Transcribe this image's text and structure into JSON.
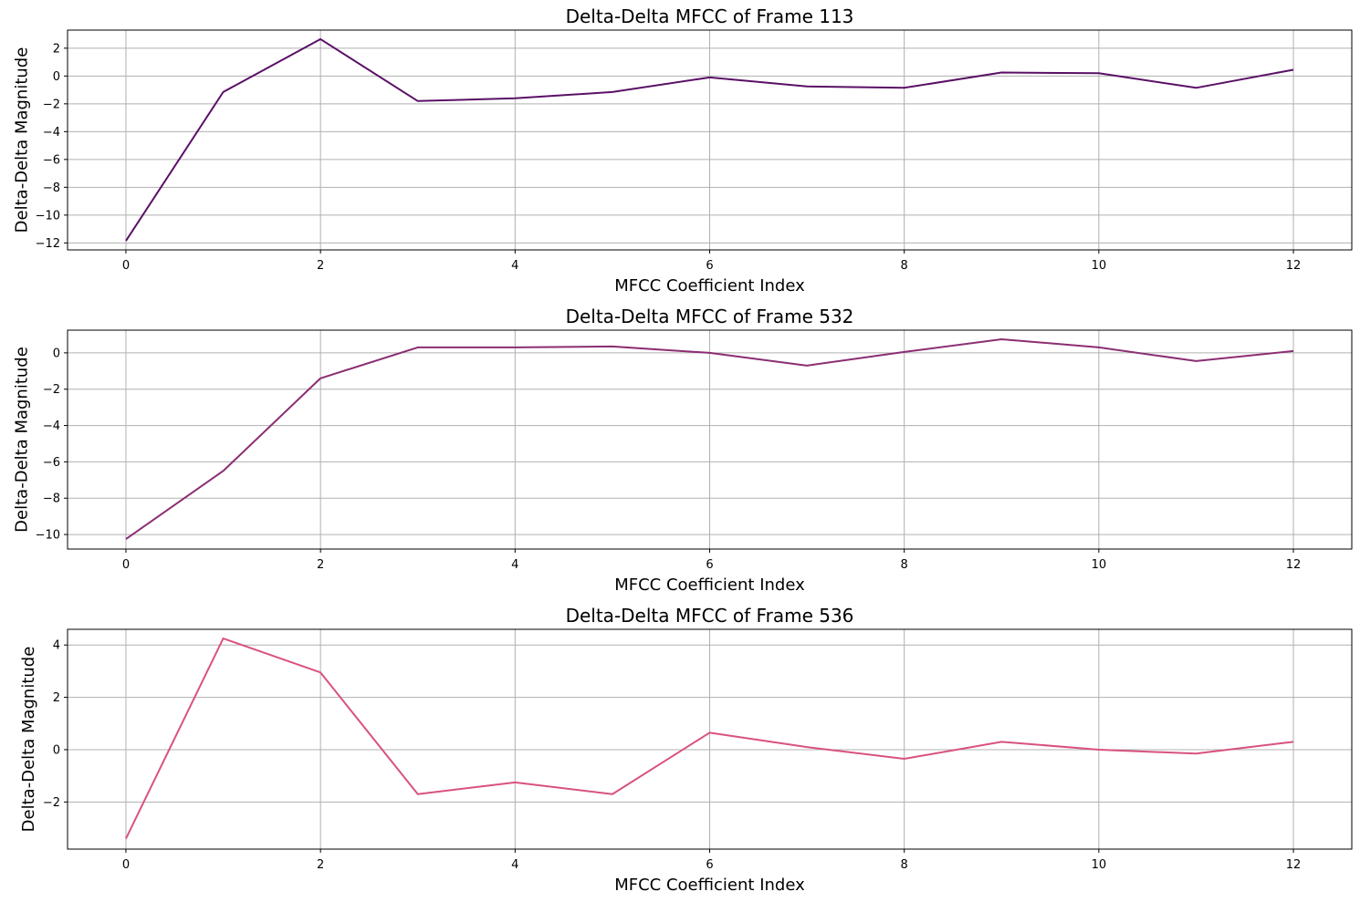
{
  "chart_data": [
    {
      "type": "line",
      "title": "Delta-Delta MFCC of Frame 113",
      "xlabel": "MFCC Coefficient Index",
      "ylabel": "Delta-Delta Magnitude",
      "x": [
        0,
        1,
        2,
        3,
        4,
        5,
        6,
        7,
        8,
        9,
        10,
        11,
        12
      ],
      "series": [
        {
          "color": "#5a1066",
          "values": [
            -11.85,
            -1.15,
            2.65,
            -1.8,
            -1.6,
            -1.15,
            -0.1,
            -0.75,
            -0.85,
            0.25,
            0.2,
            -0.85,
            0.45
          ]
        }
      ],
      "xlim": [
        -0.6,
        12.6
      ],
      "ylim": [
        -12.5,
        3.3
      ],
      "xticks": [
        0,
        2,
        4,
        6,
        8,
        10,
        12
      ],
      "yticks": [
        -12,
        -10,
        -8,
        -6,
        -4,
        -2,
        0,
        2
      ],
      "grid": true
    },
    {
      "type": "line",
      "title": "Delta-Delta MFCC of Frame 532",
      "xlabel": "MFCC Coefficient Index",
      "ylabel": "Delta-Delta Magnitude",
      "x": [
        0,
        1,
        2,
        3,
        4,
        5,
        6,
        7,
        8,
        9,
        10,
        11,
        12
      ],
      "series": [
        {
          "color": "#8b2e72",
          "values": [
            -10.25,
            -6.5,
            -1.4,
            0.3,
            0.3,
            0.35,
            0.0,
            -0.7,
            0.05,
            0.75,
            0.3,
            -0.45,
            0.1
          ]
        }
      ],
      "xlim": [
        -0.6,
        12.6
      ],
      "ylim": [
        -10.8,
        1.25
      ],
      "xticks": [
        0,
        2,
        4,
        6,
        8,
        10,
        12
      ],
      "yticks": [
        -10,
        -8,
        -6,
        -4,
        -2,
        0
      ],
      "grid": true
    },
    {
      "type": "line",
      "title": "Delta-Delta MFCC of Frame 536",
      "xlabel": "MFCC Coefficient Index",
      "ylabel": "Delta-Delta Magnitude",
      "x": [
        0,
        1,
        2,
        3,
        4,
        5,
        6,
        7,
        8,
        9,
        10,
        11,
        12
      ],
      "series": [
        {
          "color": "#d9527e",
          "values": [
            -3.4,
            4.25,
            2.95,
            -1.7,
            -1.25,
            -1.7,
            0.65,
            0.1,
            -0.35,
            0.3,
            0.0,
            -0.15,
            0.3
          ]
        }
      ],
      "xlim": [
        -0.6,
        12.6
      ],
      "ylim": [
        -3.8,
        4.6
      ],
      "xticks": [
        0,
        2,
        4,
        6,
        8,
        10,
        12
      ],
      "yticks": [
        -2,
        0,
        2,
        4
      ],
      "grid": true
    }
  ]
}
